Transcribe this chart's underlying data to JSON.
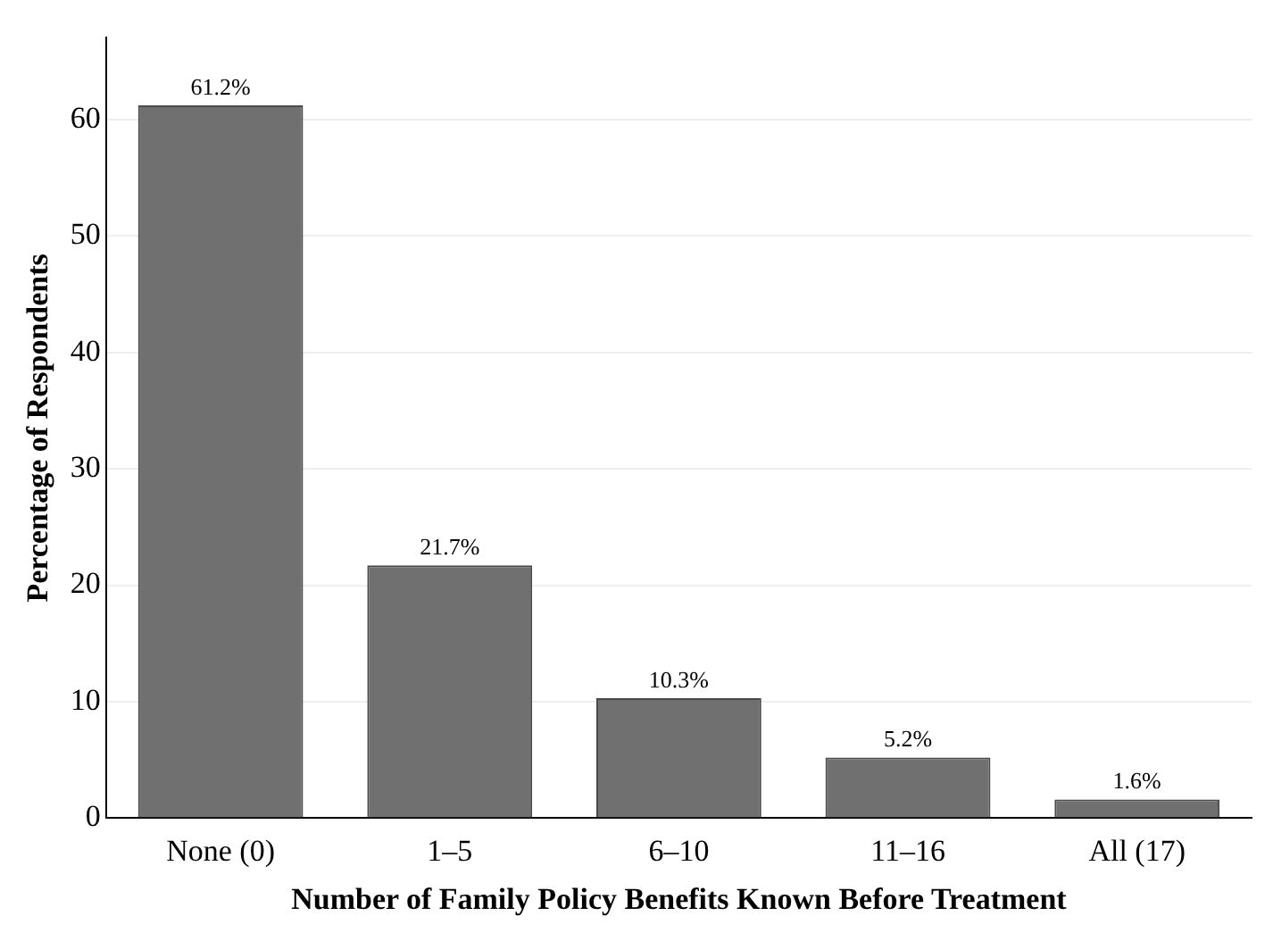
{
  "chart_data": {
    "type": "bar",
    "xlabel": "Number of Family Policy Benefits Known Before Treatment",
    "ylabel": "Percentage of Respondents",
    "categories": [
      "None (0)",
      "1–5",
      "6–10",
      "11–16",
      "All (17)"
    ],
    "values": [
      61.2,
      21.7,
      10.3,
      5.2,
      1.6
    ],
    "value_labels": [
      "61.2%",
      "21.7%",
      "10.3%",
      "5.2%",
      "1.6%"
    ],
    "color": "#707070",
    "ylim": [
      0,
      67
    ],
    "yticks": [
      0,
      10,
      20,
      30,
      40,
      50,
      60
    ],
    "grid": "y"
  }
}
